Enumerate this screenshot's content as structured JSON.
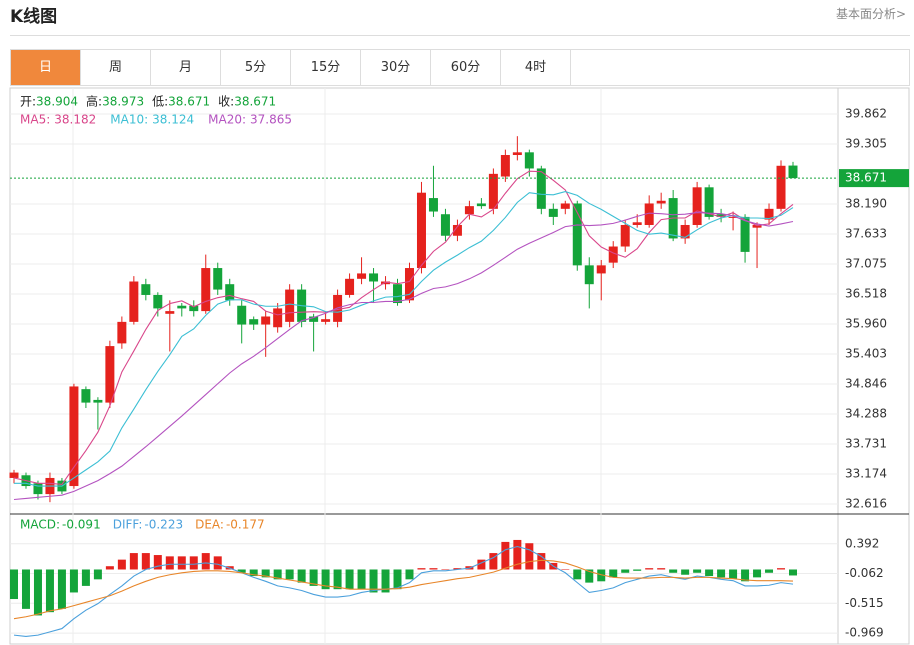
{
  "header": {
    "title": "K线图",
    "link": "基本面分析>"
  },
  "tabs": {
    "items": [
      "日",
      "周",
      "月",
      "5分",
      "15分",
      "30分",
      "60分",
      "4时"
    ],
    "active": 0
  },
  "chart_data": [
    {
      "type": "candlestick",
      "ohlc_labels": [
        "开:",
        "高:",
        "低:",
        "收:"
      ],
      "up_color": "#e5221d",
      "down_color": "#14a43a",
      "last_price_color": "#14a43a",
      "open": [
        33.1,
        33.15,
        33.0,
        32.8,
        33.05,
        32.95,
        34.75,
        34.55,
        34.5,
        35.6,
        36.0,
        36.7,
        36.5,
        36.15,
        36.3,
        36.3,
        36.2,
        37.0,
        36.7,
        36.3,
        36.05,
        35.95,
        35.9,
        36.0,
        36.6,
        36.1,
        36.0,
        36.0,
        36.5,
        36.8,
        36.9,
        36.7,
        36.7,
        36.4,
        37.0,
        38.3,
        38.0,
        37.6,
        38.0,
        38.2,
        38.1,
        38.7,
        39.1,
        39.15,
        38.85,
        38.1,
        38.1,
        38.2,
        37.05,
        36.9,
        37.1,
        37.4,
        37.8,
        37.8,
        38.2,
        38.3,
        37.55,
        37.8,
        38.5,
        38.0,
        37.95,
        37.95,
        37.75,
        37.9,
        38.1,
        38.904
      ],
      "high": [
        33.25,
        33.2,
        33.05,
        33.2,
        33.1,
        34.85,
        34.8,
        34.6,
        35.65,
        36.1,
        36.85,
        36.8,
        36.55,
        36.4,
        36.35,
        36.4,
        37.25,
        37.1,
        36.8,
        36.4,
        36.1,
        36.2,
        36.35,
        36.7,
        36.7,
        36.15,
        36.2,
        36.6,
        36.9,
        37.2,
        37.0,
        36.85,
        36.8,
        37.1,
        38.6,
        38.9,
        38.1,
        37.9,
        38.25,
        38.3,
        38.85,
        39.2,
        39.45,
        39.2,
        38.9,
        38.2,
        38.25,
        38.25,
        37.2,
        37.15,
        37.5,
        37.9,
        38.0,
        38.35,
        38.4,
        38.45,
        37.9,
        38.6,
        38.55,
        38.1,
        38.05,
        38.0,
        37.85,
        38.2,
        39.0,
        38.973
      ],
      "low": [
        33.0,
        32.9,
        32.7,
        32.65,
        32.8,
        32.9,
        34.4,
        34.0,
        34.4,
        35.5,
        35.95,
        36.4,
        36.1,
        35.45,
        36.1,
        36.1,
        36.15,
        36.5,
        36.3,
        35.6,
        35.85,
        35.35,
        35.8,
        35.9,
        35.9,
        35.45,
        35.95,
        35.9,
        36.45,
        36.7,
        36.35,
        36.6,
        36.3,
        36.35,
        36.9,
        37.95,
        37.5,
        37.5,
        37.9,
        38.1,
        38.0,
        38.6,
        39.0,
        38.7,
        38.0,
        37.8,
        38.0,
        36.95,
        36.25,
        36.4,
        37.0,
        37.3,
        37.75,
        37.75,
        38.1,
        37.5,
        37.45,
        37.75,
        37.9,
        37.85,
        37.7,
        37.1,
        37.0,
        37.8,
        38.05,
        38.671
      ],
      "close": [
        33.2,
        32.95,
        32.8,
        33.1,
        32.85,
        34.8,
        34.5,
        34.5,
        35.55,
        36.0,
        36.75,
        36.5,
        36.25,
        36.2,
        36.25,
        36.2,
        37.0,
        36.6,
        36.4,
        35.95,
        35.95,
        36.1,
        36.25,
        36.6,
        36.0,
        36.0,
        36.05,
        36.5,
        36.8,
        36.9,
        36.75,
        36.75,
        36.35,
        37.0,
        38.4,
        38.05,
        37.6,
        37.8,
        38.15,
        38.15,
        38.75,
        39.1,
        39.15,
        38.85,
        38.1,
        37.95,
        38.2,
        37.05,
        36.7,
        37.05,
        37.4,
        37.8,
        37.85,
        38.2,
        38.25,
        37.55,
        37.8,
        38.5,
        37.95,
        37.95,
        37.95,
        37.3,
        37.8,
        38.1,
        38.9,
        38.671
      ],
      "series": [
        {
          "name": "MA5:",
          "color": "#d9478b",
          "values": [
            33.1,
            33.05,
            33.0,
            33.0,
            32.98,
            33.3,
            33.61,
            33.95,
            34.44,
            35.07,
            35.46,
            35.86,
            36.21,
            36.34,
            36.39,
            36.28,
            36.38,
            36.45,
            36.49,
            36.43,
            36.38,
            36.2,
            36.13,
            36.17,
            36.18,
            36.19,
            36.18,
            36.23,
            36.27,
            36.45,
            36.6,
            36.74,
            36.71,
            36.75,
            37.05,
            37.31,
            37.48,
            37.77,
            38.0,
            37.95,
            38.09,
            38.39,
            38.66,
            38.8,
            38.79,
            38.63,
            38.45,
            38.03,
            37.6,
            37.39,
            37.28,
            37.2,
            37.36,
            37.66,
            37.9,
            37.93,
            37.93,
            38.06,
            38.01,
            37.95,
            38.03,
            37.89,
            37.79,
            37.82,
            38.01,
            38.182
          ]
        },
        {
          "name": "MA10:",
          "color": "#3cbfd4",
          "values": [
            33.0,
            33.0,
            32.95,
            32.95,
            32.95,
            33.1,
            33.25,
            33.4,
            33.6,
            34.03,
            34.38,
            34.74,
            35.08,
            35.39,
            35.73,
            35.87,
            36.12,
            36.33,
            36.41,
            36.41,
            36.33,
            36.29,
            36.29,
            36.33,
            36.3,
            36.28,
            36.19,
            36.18,
            36.22,
            36.31,
            36.39,
            36.46,
            36.47,
            36.51,
            36.75,
            36.96,
            37.11,
            37.24,
            37.38,
            37.5,
            37.7,
            37.94,
            38.22,
            38.4,
            38.37,
            38.36,
            38.42,
            38.35,
            38.2,
            38.09,
            37.96,
            37.83,
            37.7,
            37.63,
            37.65,
            37.61,
            37.57,
            37.71,
            37.84,
            37.93,
            37.98,
            37.93,
            37.93,
            37.92,
            37.98,
            38.124
          ]
        },
        {
          "name": "MA20:",
          "color": "#b453c0",
          "values": [
            32.7,
            32.72,
            32.74,
            32.76,
            32.78,
            32.85,
            32.95,
            33.05,
            33.18,
            33.32,
            33.5,
            33.68,
            33.87,
            34.06,
            34.25,
            34.45,
            34.65,
            34.85,
            35.05,
            35.22,
            35.36,
            35.52,
            35.69,
            35.86,
            36.02,
            36.08,
            36.16,
            36.26,
            36.32,
            36.36,
            36.36,
            36.38,
            36.38,
            36.42,
            36.53,
            36.62,
            36.65,
            36.71,
            36.8,
            36.91,
            37.05,
            37.2,
            37.35,
            37.46,
            37.56,
            37.66,
            37.77,
            37.8,
            37.79,
            37.8,
            37.83,
            37.89,
            37.96,
            38.02,
            38.01,
            37.99,
            38.0,
            38.03,
            38.02,
            38.01,
            37.97,
            37.88,
            37.82,
            37.78,
            37.82,
            37.865
          ]
        }
      ],
      "ylim": [
        32.449,
        40.345
      ],
      "yticks": [
        39.862,
        39.305,
        {
          "value": 38.19,
          "label": "38.190"
        },
        37.633,
        37.075,
        36.518,
        {
          "value": 35.96,
          "label": "35.960"
        },
        35.403,
        34.846,
        34.288,
        33.731,
        33.174,
        32.616
      ],
      "grid": true
    },
    {
      "type": "macd",
      "series": [
        {
          "name": "MACD:",
          "kind": "bar",
          "color": "#14a43a",
          "up_color": "#e5221d",
          "down_color": "#14a43a",
          "values": [
            -0.45,
            -0.6,
            -0.7,
            -0.65,
            -0.6,
            -0.35,
            -0.25,
            -0.15,
            0.05,
            0.15,
            0.25,
            0.25,
            0.22,
            0.2,
            0.2,
            0.2,
            0.25,
            0.2,
            0.05,
            -0.05,
            -0.1,
            -0.12,
            -0.15,
            -0.15,
            -0.2,
            -0.25,
            -0.3,
            -0.3,
            -0.3,
            -0.3,
            -0.35,
            -0.35,
            -0.3,
            -0.15,
            0.02,
            0.02,
            0.0,
            0.02,
            0.05,
            0.15,
            0.25,
            0.42,
            0.45,
            0.4,
            0.25,
            0.1,
            0.0,
            -0.15,
            -0.2,
            -0.18,
            -0.12,
            -0.05,
            -0.02,
            0.02,
            0.02,
            -0.05,
            -0.08,
            -0.05,
            -0.1,
            -0.12,
            -0.14,
            -0.18,
            -0.12,
            -0.05,
            0.02,
            -0.091
          ]
        },
        {
          "name": "DIFF:",
          "kind": "line",
          "color": "#4ba0dc",
          "values": [
            -1.0,
            -1.02,
            -1.0,
            -0.95,
            -0.9,
            -0.75,
            -0.62,
            -0.52,
            -0.38,
            -0.25,
            -0.1,
            0.0,
            0.05,
            0.08,
            0.08,
            0.08,
            0.1,
            0.08,
            0.02,
            -0.05,
            -0.12,
            -0.18,
            -0.25,
            -0.28,
            -0.32,
            -0.38,
            -0.42,
            -0.42,
            -0.4,
            -0.35,
            -0.32,
            -0.3,
            -0.28,
            -0.2,
            -0.05,
            -0.02,
            -0.02,
            0.0,
            0.02,
            0.1,
            0.18,
            0.3,
            0.35,
            0.3,
            0.2,
            0.05,
            -0.05,
            -0.2,
            -0.35,
            -0.32,
            -0.28,
            -0.2,
            -0.15,
            -0.1,
            -0.08,
            -0.12,
            -0.15,
            -0.1,
            -0.12,
            -0.15,
            -0.17,
            -0.25,
            -0.25,
            -0.24,
            -0.2,
            -0.223
          ]
        },
        {
          "name": "DEA:",
          "kind": "line",
          "color": "#e8862a",
          "values": [
            -0.75,
            -0.72,
            -0.68,
            -0.63,
            -0.6,
            -0.55,
            -0.5,
            -0.45,
            -0.4,
            -0.33,
            -0.25,
            -0.18,
            -0.12,
            -0.08,
            -0.05,
            -0.03,
            -0.02,
            -0.02,
            -0.03,
            -0.05,
            -0.08,
            -0.1,
            -0.13,
            -0.16,
            -0.19,
            -0.22,
            -0.25,
            -0.27,
            -0.3,
            -0.3,
            -0.3,
            -0.3,
            -0.29,
            -0.27,
            -0.23,
            -0.2,
            -0.17,
            -0.14,
            -0.12,
            -0.08,
            -0.04,
            0.02,
            0.08,
            0.12,
            0.14,
            0.13,
            0.1,
            0.04,
            -0.03,
            -0.08,
            -0.12,
            -0.13,
            -0.13,
            -0.13,
            -0.12,
            -0.12,
            -0.13,
            -0.12,
            -0.12,
            -0.13,
            -0.14,
            -0.16,
            -0.17,
            -0.17,
            -0.17,
            -0.177
          ]
        }
      ],
      "ylim": [
        -1.135,
        0.83
      ],
      "yticks": [
        0.392,
        -0.062,
        -0.515,
        -0.969
      ],
      "grid": true
    }
  ]
}
